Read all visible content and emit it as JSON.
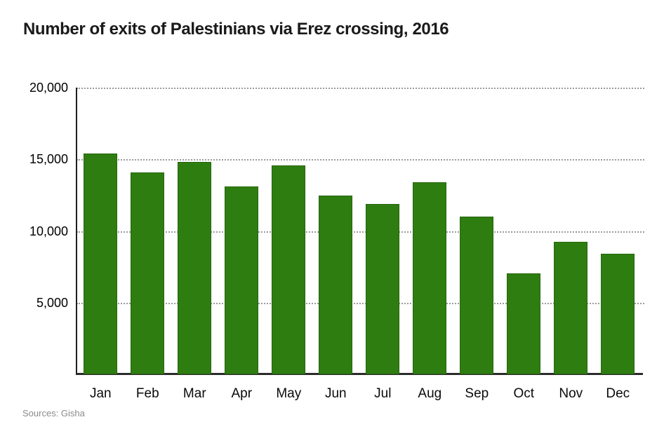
{
  "page": {
    "background": "#ffffff"
  },
  "chart_data": {
    "type": "bar",
    "title": "Number of exits of Palestinians via Erez crossing, 2016",
    "categories": [
      "Jan",
      "Feb",
      "Mar",
      "Apr",
      "May",
      "Jun",
      "Jul",
      "Aug",
      "Sep",
      "Oct",
      "Nov",
      "Dec"
    ],
    "values": [
      15400,
      14100,
      14800,
      13100,
      14550,
      12450,
      11900,
      13400,
      11000,
      7050,
      9250,
      8400
    ],
    "xlabel": "",
    "ylabel": "",
    "ylim": [
      0,
      20000
    ],
    "yticks": [
      20000,
      15000,
      10000,
      5000
    ],
    "ytick_labels": [
      "20,000",
      "15,000",
      "10,000",
      "5,000"
    ],
    "grid": "horizontal-dotted",
    "legend": "none",
    "bar_color": "#2e7d11"
  },
  "footer": {
    "source": "Sources: Gisha"
  },
  "colors": {
    "bar": "#2e7d11",
    "bar_edge": "#27660d",
    "axis": "#1f1f1f",
    "gridline": "#9b9b9b",
    "title_text": "#1a1a1a",
    "tick_text": "#000000",
    "source_text": "#8b8b8b",
    "background": "#ffffff"
  }
}
